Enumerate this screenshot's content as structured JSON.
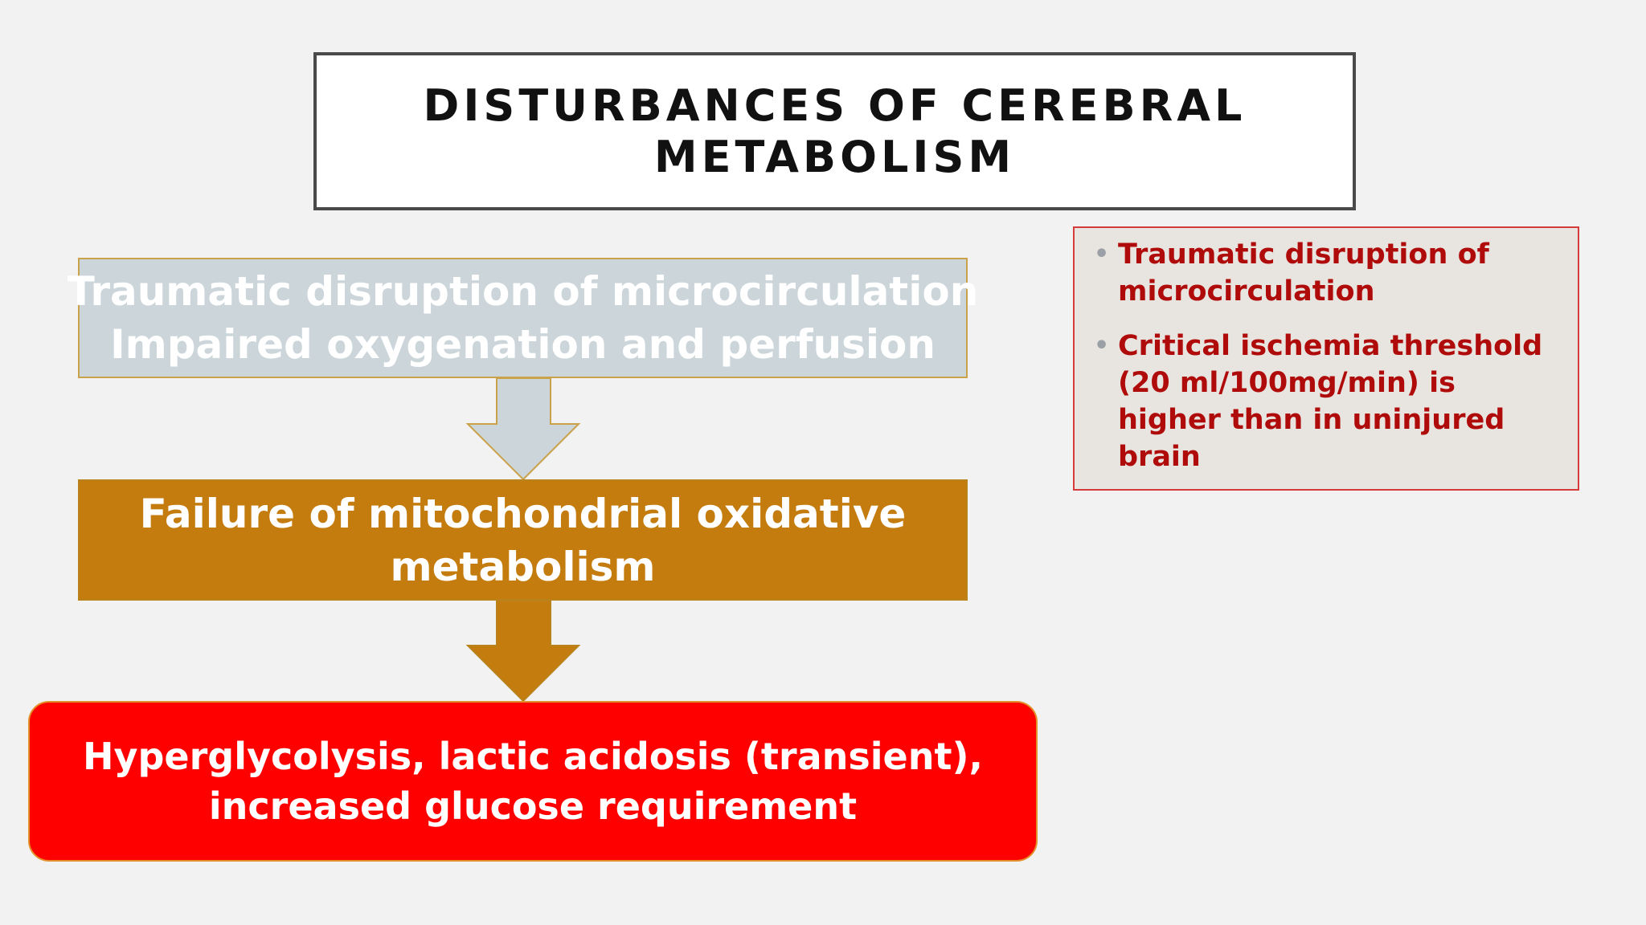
{
  "slide": {
    "title_lines": [
      "DISTURBANCES OF CEREBRAL",
      "METABOLISM"
    ]
  },
  "flow": {
    "steps": [
      {
        "lines": [
          "Traumatic disruption of microcirculation",
          "Impaired oxygenation and perfusion"
        ]
      },
      {
        "lines": [
          "Failure of mitochondrial oxidative",
          "metabolism"
        ]
      },
      {
        "lines": [
          "Hyperglycolysis, lactic acidosis (transient),",
          "increased glucose requirement"
        ]
      }
    ]
  },
  "notes": {
    "bullets": [
      "Traumatic disruption of microcirculation",
      "Critical ischemia threshold (20 ml/100mg/min) is higher than in uninjured brain"
    ]
  },
  "colors": {
    "background": "#f2f2f2",
    "step1_fill": "#cbd5da",
    "step2_fill": "#c47c0e",
    "step3_fill": "#fe0000",
    "note_text": "#b00b0b",
    "note_border": "#d63a3a"
  }
}
